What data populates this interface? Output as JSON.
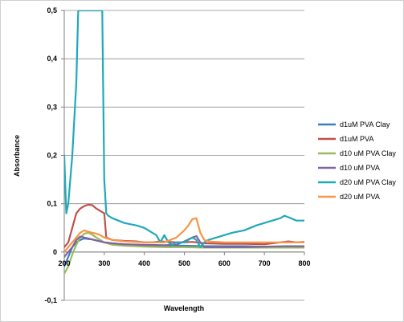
{
  "chart_data": {
    "type": "line",
    "title": "",
    "xlabel": "Wavelength",
    "ylabel": "Absorbance",
    "xlim": [
      200,
      800
    ],
    "ylim": [
      -0.1,
      0.5
    ],
    "x_ticks": [
      200,
      300,
      400,
      500,
      600,
      700,
      800
    ],
    "x_tick_labels": [
      "200",
      "300",
      "400",
      "500",
      "600",
      "700",
      "800"
    ],
    "y_ticks": [
      -0.1,
      0,
      0.1,
      0.2,
      0.3,
      0.4,
      0.5
    ],
    "y_tick_labels": [
      "-0,1",
      "0",
      "0,1",
      "0,2",
      "0,3",
      "0,4",
      "0,5"
    ],
    "grid": "horizontal",
    "legend_position": "right",
    "series": [
      {
        "name": "d1uM PVA Clay",
        "color": "#3a7fc4",
        "x": [
          200,
          210,
          220,
          230,
          240,
          250,
          260,
          270,
          280,
          290,
          300,
          320,
          350,
          400,
          450,
          500,
          550,
          600,
          650,
          700,
          750,
          800
        ],
        "y": [
          -0.03,
          -0.01,
          0.01,
          0.02,
          0.025,
          0.028,
          0.027,
          0.026,
          0.024,
          0.022,
          0.02,
          0.018,
          0.016,
          0.014,
          0.013,
          0.013,
          0.012,
          0.012,
          0.012,
          0.011,
          0.011,
          0.011
        ]
      },
      {
        "name": "d1uM PVA",
        "color": "#c0504d",
        "x": [
          200,
          210,
          220,
          230,
          240,
          250,
          260,
          270,
          280,
          290,
          300,
          305,
          320,
          350,
          380,
          400,
          420,
          440,
          460,
          480,
          500,
          520,
          530,
          550,
          600,
          650,
          700,
          740,
          760,
          780,
          800
        ],
        "y": [
          0.01,
          0.02,
          0.05,
          0.08,
          0.09,
          0.095,
          0.098,
          0.097,
          0.09,
          0.085,
          0.08,
          0.03,
          0.025,
          0.023,
          0.022,
          0.02,
          0.02,
          0.022,
          0.021,
          0.02,
          0.02,
          0.021,
          0.02,
          0.018,
          0.017,
          0.017,
          0.016,
          0.02,
          0.022,
          0.02,
          0.021
        ]
      },
      {
        "name": "d10 uM PVA Clay",
        "color": "#9bbb59",
        "x": [
          200,
          210,
          220,
          230,
          240,
          250,
          260,
          270,
          280,
          290,
          300,
          320,
          350,
          400,
          450,
          500,
          550,
          600,
          650,
          700,
          750,
          800
        ],
        "y": [
          -0.045,
          -0.03,
          -0.005,
          0.015,
          0.03,
          0.038,
          0.04,
          0.036,
          0.03,
          0.025,
          0.02,
          0.015,
          0.013,
          0.011,
          0.01,
          0.01,
          0.009,
          0.009,
          0.009,
          0.009,
          0.009,
          0.009
        ]
      },
      {
        "name": "d10 uM PVA",
        "color": "#8064a2",
        "x": [
          200,
          210,
          220,
          230,
          240,
          250,
          260,
          270,
          280,
          290,
          300,
          320,
          350,
          400,
          450,
          480,
          500,
          520,
          530,
          540,
          550,
          600,
          650,
          700,
          750,
          800
        ],
        "y": [
          -0.01,
          0.0,
          0.01,
          0.025,
          0.032,
          0.03,
          0.028,
          0.026,
          0.024,
          0.022,
          0.02,
          0.018,
          0.016,
          0.015,
          0.014,
          0.015,
          0.022,
          0.03,
          0.033,
          0.02,
          0.01,
          0.01,
          0.01,
          0.011,
          0.012,
          0.012
        ]
      },
      {
        "name": "d20 uM PVA Clay",
        "color": "#21a9b8",
        "x": [
          200,
          205,
          210,
          220,
          230,
          235,
          240,
          250,
          260,
          270,
          280,
          290,
          295,
          300,
          305,
          310,
          320,
          350,
          380,
          400,
          420,
          430,
          440,
          450,
          460,
          470,
          480,
          500,
          520,
          530,
          540,
          550,
          560,
          580,
          600,
          620,
          650,
          680,
          700,
          720,
          740,
          750,
          760,
          780,
          800
        ],
        "y": [
          0.2,
          0.08,
          0.1,
          0.2,
          0.35,
          0.5,
          0.5,
          0.5,
          0.5,
          0.5,
          0.5,
          0.5,
          0.5,
          0.15,
          0.08,
          0.075,
          0.07,
          0.06,
          0.055,
          0.05,
          0.04,
          0.035,
          0.02,
          0.035,
          0.02,
          0.015,
          0.02,
          0.02,
          0.03,
          0.025,
          0.01,
          0.02,
          0.025,
          0.03,
          0.035,
          0.04,
          0.045,
          0.055,
          0.06,
          0.065,
          0.07,
          0.075,
          0.072,
          0.065,
          0.065
        ]
      },
      {
        "name": "d20 uM PVA",
        "color": "#f79646",
        "x": [
          200,
          210,
          220,
          230,
          240,
          250,
          260,
          270,
          280,
          290,
          300,
          320,
          350,
          400,
          450,
          480,
          500,
          510,
          520,
          530,
          540,
          550,
          560,
          600,
          650,
          700,
          750,
          800
        ],
        "y": [
          0.0,
          0.01,
          0.02,
          0.03,
          0.04,
          0.045,
          0.042,
          0.04,
          0.038,
          0.035,
          0.03,
          0.025,
          0.022,
          0.02,
          0.02,
          0.03,
          0.045,
          0.055,
          0.068,
          0.07,
          0.04,
          0.025,
          0.022,
          0.02,
          0.02,
          0.02,
          0.02,
          0.02
        ]
      }
    ]
  }
}
